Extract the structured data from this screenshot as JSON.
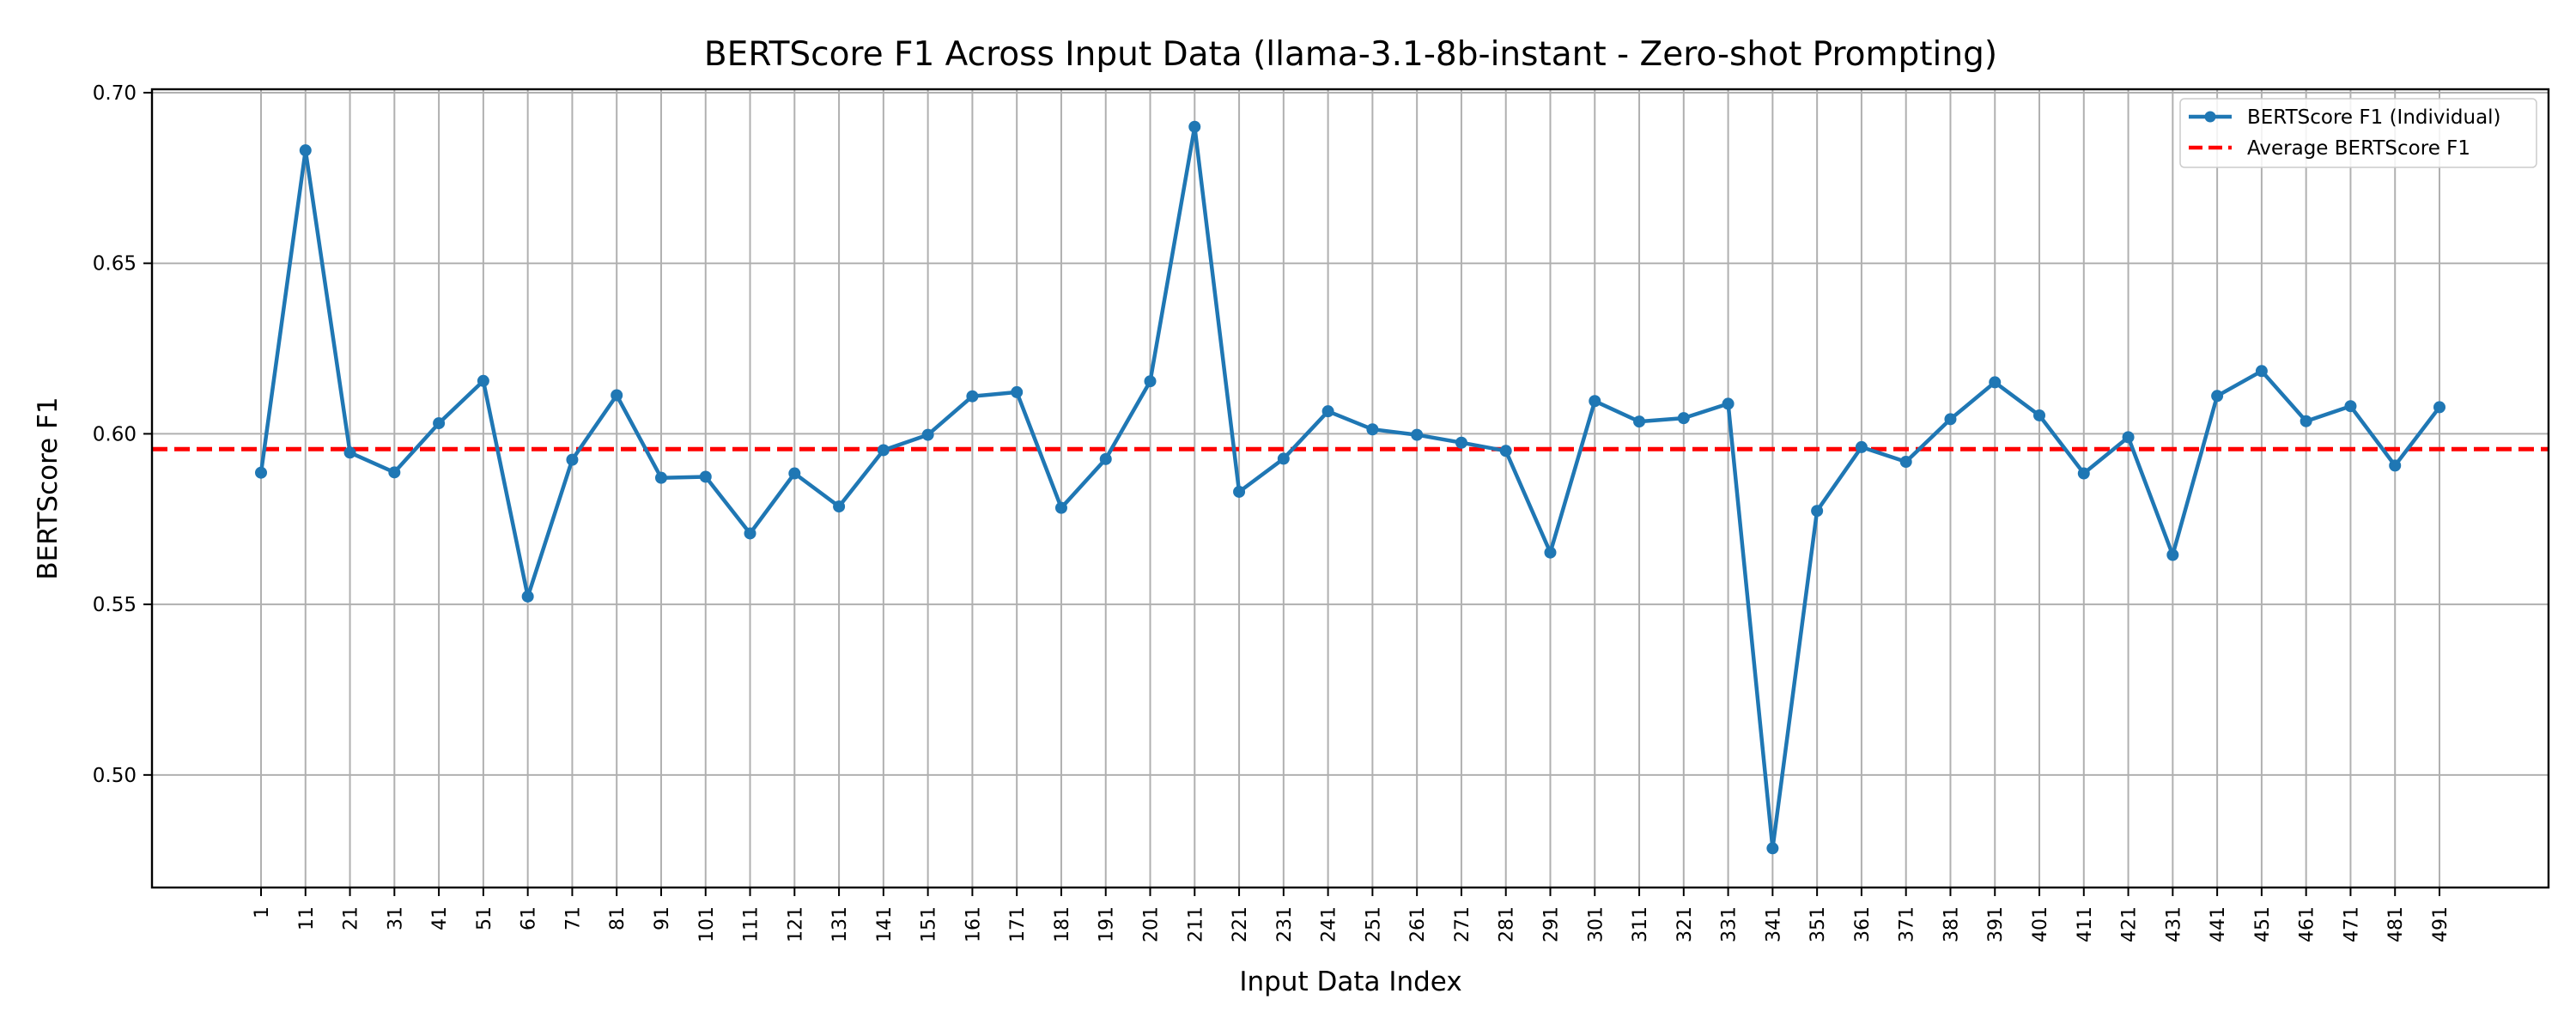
{
  "chart_data": {
    "type": "line",
    "title": "BERTScore F1 Across Input Data (llama-3.1-8b-instant - Zero-shot Prompting)",
    "xlabel": "Input Data Index",
    "ylabel": "BERTScore F1",
    "ylim": [
      0.467,
      0.701
    ],
    "yticks": [
      "0.50",
      "0.55",
      "0.60",
      "0.65",
      "0.70"
    ],
    "grid": true,
    "legend_position": "top-right",
    "categories": [
      "1",
      "11",
      "21",
      "31",
      "41",
      "51",
      "61",
      "71",
      "81",
      "91",
      "101",
      "111",
      "121",
      "131",
      "141",
      "151",
      "161",
      "171",
      "181",
      "191",
      "201",
      "211",
      "221",
      "231",
      "241",
      "251",
      "261",
      "271",
      "281",
      "291",
      "301",
      "311",
      "321",
      "331",
      "341",
      "351",
      "361",
      "371",
      "381",
      "391",
      "401",
      "411",
      "421",
      "431",
      "441",
      "451",
      "461",
      "471",
      "481",
      "491"
    ],
    "series": [
      {
        "name": "BERTScore F1 (Individual)",
        "color": "#1f77b4",
        "style": "solid-with-markers",
        "values": [
          0.5886,
          0.6831,
          0.5945,
          0.5887,
          0.6031,
          0.6155,
          0.5523,
          0.5924,
          0.6113,
          0.5871,
          0.5874,
          0.5708,
          0.5884,
          0.5787,
          0.5952,
          0.5997,
          0.611,
          0.6122,
          0.5783,
          0.5926,
          0.6154,
          0.69,
          0.583,
          0.5927,
          0.6066,
          0.6013,
          0.5997,
          0.5974,
          0.595,
          0.5652,
          0.6096,
          0.6036,
          0.6046,
          0.6088,
          0.4785,
          0.5774,
          0.5961,
          0.5918,
          0.6043,
          0.6151,
          0.6054,
          0.5884,
          0.599,
          0.5645,
          0.6111,
          0.6184,
          0.6037,
          0.6081,
          0.5907,
          0.6078
        ]
      },
      {
        "name": "Average BERTScore F1",
        "color": "#ff0000",
        "style": "dashed",
        "value": 0.5955
      }
    ]
  }
}
